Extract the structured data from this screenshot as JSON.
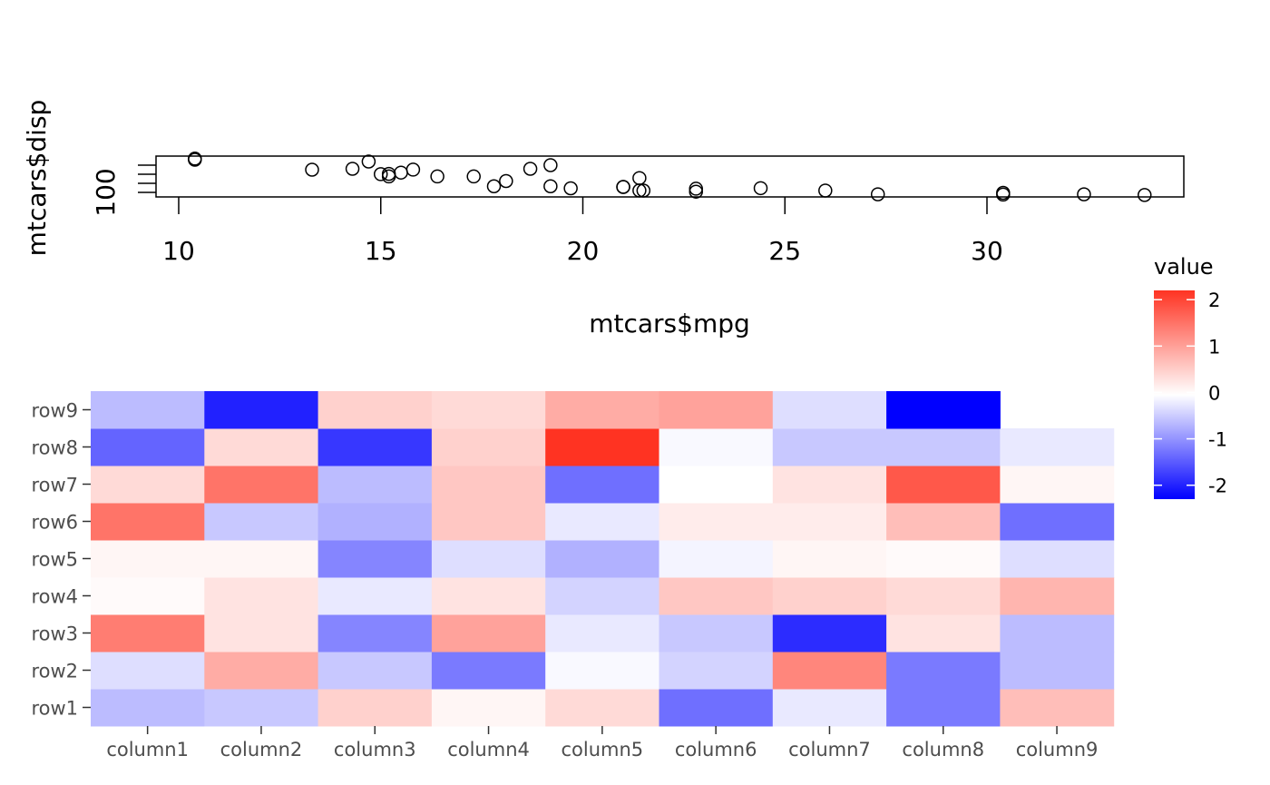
{
  "chart_data": [
    {
      "type": "scatter",
      "xlabel": "mtcars$mpg",
      "ylabel": "mtcars$disp",
      "x_ticks": [
        10,
        15,
        20,
        25,
        30
      ],
      "y_ticks_labeled": [
        100
      ],
      "xlim": [
        9.5,
        34.5
      ],
      "ylim": [
        60,
        480
      ],
      "marker": "open-circle",
      "points": [
        {
          "x": 21.0,
          "y": 160
        },
        {
          "x": 21.0,
          "y": 160
        },
        {
          "x": 22.8,
          "y": 108
        },
        {
          "x": 21.4,
          "y": 258
        },
        {
          "x": 18.7,
          "y": 360
        },
        {
          "x": 18.1,
          "y": 225
        },
        {
          "x": 14.3,
          "y": 360
        },
        {
          "x": 24.4,
          "y": 146.7
        },
        {
          "x": 22.8,
          "y": 140.8
        },
        {
          "x": 19.2,
          "y": 167.6
        },
        {
          "x": 17.8,
          "y": 167.6
        },
        {
          "x": 16.4,
          "y": 275.8
        },
        {
          "x": 17.3,
          "y": 275.8
        },
        {
          "x": 15.2,
          "y": 275.8
        },
        {
          "x": 10.4,
          "y": 472
        },
        {
          "x": 10.4,
          "y": 460
        },
        {
          "x": 14.7,
          "y": 440
        },
        {
          "x": 32.4,
          "y": 78.7
        },
        {
          "x": 30.4,
          "y": 75.7
        },
        {
          "x": 33.9,
          "y": 71.1
        },
        {
          "x": 21.5,
          "y": 120.1
        },
        {
          "x": 15.5,
          "y": 318
        },
        {
          "x": 15.2,
          "y": 304
        },
        {
          "x": 13.3,
          "y": 350
        },
        {
          "x": 19.2,
          "y": 400
        },
        {
          "x": 27.3,
          "y": 79
        },
        {
          "x": 26.0,
          "y": 120.3
        },
        {
          "x": 30.4,
          "y": 95.1
        },
        {
          "x": 15.8,
          "y": 351
        },
        {
          "x": 19.7,
          "y": 145
        },
        {
          "x": 15.0,
          "y": 301
        },
        {
          "x": 21.4,
          "y": 121
        }
      ]
    },
    {
      "type": "heatmap",
      "legend_title": "value",
      "legend_ticks": [
        2,
        1,
        0,
        -1,
        -2
      ],
      "color_low": "#0000ff",
      "color_mid": "#ffffff",
      "color_high": "#ff3322",
      "limits": [
        -2.3,
        2.2
      ],
      "columns": [
        "column1",
        "column2",
        "column3",
        "column4",
        "column5",
        "column6",
        "column7",
        "column8",
        "column9"
      ],
      "rows": [
        "row1",
        "row2",
        "row3",
        "row4",
        "row5",
        "row6",
        "row7",
        "row8",
        "row9"
      ],
      "values": [
        [
          -0.6,
          -0.5,
          0.5,
          0.1,
          0.4,
          -1.3,
          -0.2,
          -1.2,
          0.7
        ],
        [
          -0.3,
          0.9,
          -0.5,
          -1.2,
          -0.05,
          -0.4,
          1.3,
          -1.2,
          -0.6
        ],
        [
          1.4,
          0.3,
          -1.1,
          1.0,
          -0.2,
          -0.5,
          -1.9,
          0.3,
          -0.6
        ],
        [
          0.05,
          0.3,
          -0.2,
          0.3,
          -0.4,
          0.6,
          0.5,
          0.4,
          0.8
        ],
        [
          0.1,
          0.1,
          -1.1,
          -0.3,
          -0.7,
          -0.1,
          0.1,
          0.05,
          -0.3
        ],
        [
          1.5,
          -0.5,
          -0.7,
          0.6,
          -0.2,
          0.2,
          0.2,
          0.7,
          -1.3
        ],
        [
          0.4,
          1.5,
          -0.6,
          0.6,
          -1.3,
          0.0,
          0.3,
          1.8,
          0.1
        ],
        [
          -1.4,
          0.4,
          -1.8,
          0.5,
          2.2,
          -0.05,
          -0.5,
          -0.5,
          -0.2
        ],
        [
          -0.6,
          -2.0,
          0.5,
          0.4,
          0.9,
          1.0,
          -0.3,
          -2.3,
          null
        ]
      ]
    }
  ]
}
